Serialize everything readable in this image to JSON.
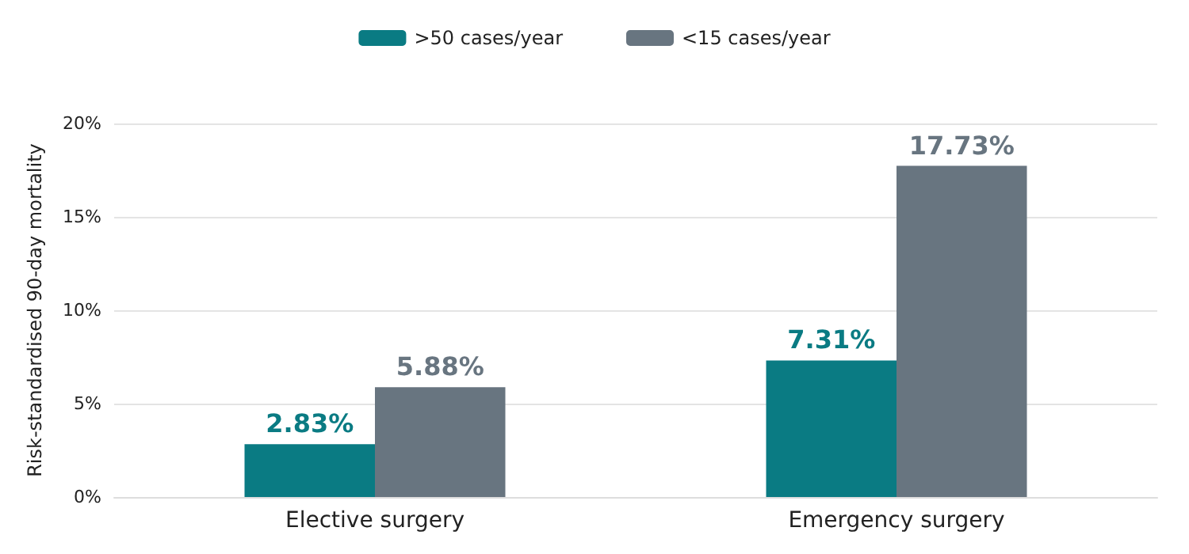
{
  "chart_data": {
    "type": "bar",
    "ylabel": "Risk-standardised 90-day mortality",
    "categories": [
      "Elective surgery",
      "Emergency surgery"
    ],
    "series": [
      {
        "name": ">50 cases/year",
        "color": "#0a7b83",
        "values": [
          2.83,
          7.31
        ],
        "value_labels": [
          "2.83%",
          "7.31%"
        ]
      },
      {
        "name": "<15 cases/year",
        "color": "#687580",
        "values": [
          5.88,
          17.73
        ],
        "value_labels": [
          "5.88%",
          "17.73%"
        ]
      }
    ],
    "ylim": [
      0,
      20
    ],
    "yticks": [
      {
        "value": 0,
        "label": "0%"
      },
      {
        "value": 5,
        "label": "5%"
      },
      {
        "value": 10,
        "label": "10%"
      },
      {
        "value": 15,
        "label": "15%"
      },
      {
        "value": 20,
        "label": "20%"
      }
    ],
    "grid": "y",
    "legend": "top"
  }
}
